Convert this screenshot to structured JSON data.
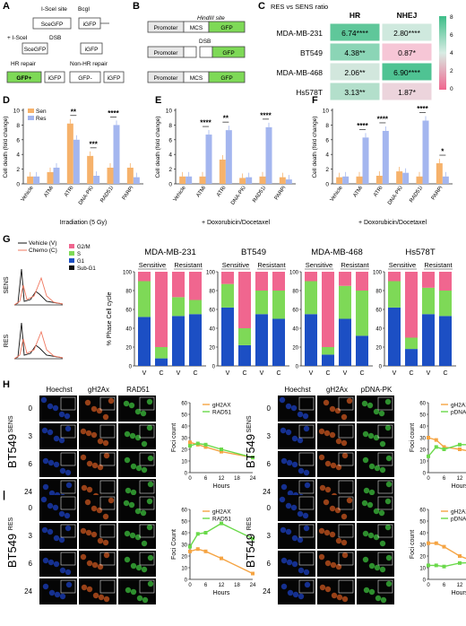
{
  "panels": {
    "A": "A",
    "B": "B",
    "C": "C",
    "D": "D",
    "E": "E",
    "F": "F",
    "G": "G",
    "H": "H"
  },
  "panelA": {
    "isce_site": "I-SceI site",
    "bcgi": "BcgI",
    "sce_gfp": "SceGFP",
    "i_gfp": "iGFP",
    "isce_dsb": "+ I-SceI",
    "dsb": "DSB",
    "hr": "HR repair",
    "non_hr": "Non-HR repair",
    "gfp_plus": "GFP+",
    "gfp_minus": "GFP-"
  },
  "panelB": {
    "hind": "HindIII site",
    "promoter": "Promoter",
    "mcs": "MCS",
    "gfp": "GFP",
    "dsb": "DSB"
  },
  "panelC": {
    "title": "RES vs SENS ratio",
    "col_hr": "HR",
    "col_nhej": "NHEJ",
    "rows": [
      {
        "name": "MDA-MB-231",
        "hr": "6.74****",
        "nhej": "2.80****",
        "hr_color": "#5fc79a",
        "nhej_color": "#cfe9de"
      },
      {
        "name": "BT549",
        "hr": "4.38**",
        "nhej": "0.87*",
        "hr_color": "#8bd5b6",
        "nhej_color": "#f6c6d6"
      },
      {
        "name": "MDA-MB-468",
        "hr": "2.06**",
        "nhej": "6.90****",
        "hr_color": "#d2e7dd",
        "nhej_color": "#4fc393"
      },
      {
        "name": "Hs578T",
        "hr": "3.13**",
        "nhej": "1.87*",
        "hr_color": "#b3dfcb",
        "nhej_color": "#ecd4dc"
      }
    ],
    "scale": [
      "8",
      "6",
      "4",
      "2",
      "0"
    ]
  },
  "bars": {
    "ylabel": "Cell death (fold change)",
    "legend_sen": "Sen",
    "legend_res": "Res",
    "sen_color": "#f6b26b",
    "res_color": "#a4b6ef",
    "categories": [
      "Vehicle",
      "ATMi",
      "ATRi",
      "DNA-PKi",
      "RAD51i",
      "PARPi"
    ],
    "D": {
      "xlabel": "Irradiation (5 Gy)",
      "ylim": [
        0,
        10
      ],
      "ticks": [
        "0",
        "2",
        "4",
        "6",
        "8",
        "10"
      ],
      "sen": [
        1,
        1.6,
        8.2,
        3.8,
        2.2,
        2.2
      ],
      "res": [
        1,
        2.2,
        6,
        1.1,
        8,
        0.9
      ],
      "stars": [
        {
          "text": "**",
          "i": 2
        },
        {
          "text": "***",
          "i": 3
        },
        {
          "text": "****",
          "i": 4
        }
      ]
    },
    "E": {
      "xlabel": "+ Doxorubicin/Docetaxel",
      "ylim": [
        0,
        10
      ],
      "ticks": [
        "0",
        "2",
        "4",
        "6",
        "8",
        "10"
      ],
      "sen": [
        1,
        1,
        3.3,
        0.8,
        1,
        0.9
      ],
      "res": [
        1,
        6.7,
        7.3,
        0.9,
        7.7,
        0.6
      ],
      "stars": [
        {
          "text": "****",
          "i": 1
        },
        {
          "text": "**",
          "i": 2
        },
        {
          "text": "****",
          "i": 4
        }
      ]
    },
    "F": {
      "xlabel": "+ Doxorubicin/Docetaxel",
      "ylim": [
        0,
        10
      ],
      "ticks": [
        "0",
        "2",
        "4",
        "6",
        "8",
        "10"
      ],
      "sen": [
        0.9,
        1,
        1.1,
        1.7,
        1,
        2.8
      ],
      "res": [
        1,
        6.3,
        7.2,
        1.5,
        8.6,
        1
      ],
      "stars": [
        {
          "text": "****",
          "i": 1
        },
        {
          "text": "****",
          "i": 2
        },
        {
          "text": "****",
          "i": 4
        },
        {
          "text": "*",
          "i": 5
        }
      ]
    }
  },
  "panelG": {
    "legend_v": "Vehicle (V)",
    "legend_c": "Chemo (C)",
    "sens": "SENS",
    "res": "RES",
    "ylabel": "% Phase Cell cycle",
    "phases": [
      {
        "name": "G2/M",
        "color": "#f0668f"
      },
      {
        "name": "S",
        "color": "#7ed957"
      },
      {
        "name": "G1",
        "color": "#1c4fc4"
      },
      {
        "name": "Sub-G1",
        "color": "#111111"
      }
    ],
    "groups": [
      "Sensitive",
      "Resistant"
    ],
    "xcats": [
      "V",
      "C",
      "V",
      "C"
    ],
    "ticks": [
      "0",
      "20",
      "40",
      "60",
      "80",
      "100"
    ],
    "charts": [
      {
        "title": "MDA-MB-231",
        "bars": [
          [
            0,
            52,
            38,
            10
          ],
          [
            0,
            8,
            12,
            80
          ],
          [
            0,
            53,
            20,
            27
          ],
          [
            0,
            55,
            15,
            30
          ]
        ]
      },
      {
        "title": "BT549",
        "bars": [
          [
            0,
            62,
            25,
            13
          ],
          [
            0,
            22,
            18,
            60
          ],
          [
            0,
            55,
            25,
            20
          ],
          [
            0,
            50,
            30,
            20
          ]
        ]
      },
      {
        "title": "MDA-MB-468",
        "bars": [
          [
            0,
            55,
            35,
            10
          ],
          [
            0,
            12,
            8,
            80
          ],
          [
            0,
            50,
            35,
            15
          ],
          [
            0,
            32,
            48,
            20
          ]
        ]
      },
      {
        "title": "Hs578T",
        "bars": [
          [
            0,
            62,
            28,
            10
          ],
          [
            0,
            18,
            12,
            70
          ],
          [
            0,
            55,
            28,
            17
          ],
          [
            0,
            53,
            27,
            20
          ]
        ]
      }
    ]
  },
  "panelH": {
    "col1": "Hoechst",
    "col2": "gH2Ax",
    "col3a": "RAD51",
    "col3b": "pDNA-PK",
    "times": [
      "0",
      "3",
      "6",
      "24"
    ],
    "label_sens": "BT549",
    "sup_sens": "SENS",
    "label_res": "BT549",
    "sup_res": "RES",
    "ylab1": "Foci count",
    "ylab2": "Foci Count",
    "xlab": "Hours",
    "xticks": [
      "0",
      "6",
      "12",
      "18",
      "24"
    ],
    "yticks": [
      "0",
      "10",
      "20",
      "30",
      "40",
      "50",
      "60"
    ],
    "gh_color": "#f5a443",
    "g2_color": "#6ad94a",
    "charts": [
      {
        "s1": "gH2AX",
        "s2": "RAD51",
        "x": [
          0,
          3,
          6,
          12,
          24
        ],
        "y1": [
          26,
          24,
          22,
          18,
          13
        ],
        "y2": [
          23,
          25,
          24,
          20,
          13
        ]
      },
      {
        "s1": "gH2AX",
        "s2": "pDNA-PK",
        "x": [
          0,
          3,
          6,
          12,
          24
        ],
        "y1": [
          30,
          28,
          22,
          20,
          15
        ],
        "y2": [
          14,
          22,
          20,
          24,
          24
        ]
      },
      {
        "s1": "gH2AX",
        "s2": "RAD51",
        "x": [
          0,
          3,
          6,
          12,
          24
        ],
        "y1": [
          24,
          26,
          24,
          18,
          5
        ],
        "y2": [
          28,
          39,
          40,
          48,
          35
        ]
      },
      {
        "s1": "gH2AX",
        "s2": "pDNA-PK",
        "x": [
          0,
          3,
          6,
          12,
          24
        ],
        "y1": [
          31,
          31,
          28,
          20,
          10
        ],
        "y2": [
          12,
          12,
          11,
          14,
          15
        ]
      }
    ]
  }
}
